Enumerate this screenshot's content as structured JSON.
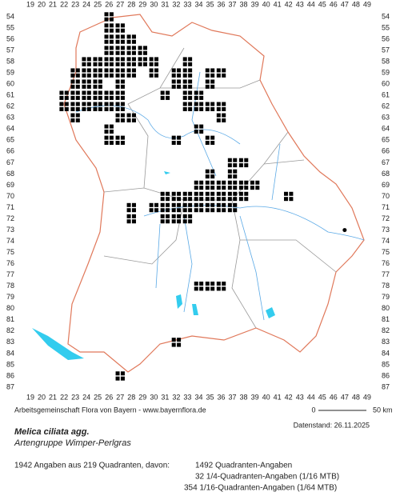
{
  "map": {
    "col_labels": [
      19,
      20,
      21,
      22,
      23,
      24,
      25,
      26,
      27,
      28,
      29,
      30,
      31,
      32,
      33,
      34,
      35,
      36,
      37,
      38,
      39,
      40,
      41,
      42,
      43,
      44,
      45,
      46,
      47,
      48,
      49
    ],
    "row_labels": [
      54,
      55,
      56,
      57,
      58,
      59,
      60,
      61,
      62,
      63,
      64,
      65,
      66,
      67,
      68,
      69,
      70,
      71,
      72,
      73,
      74,
      75,
      76,
      77,
      78,
      79,
      80,
      81,
      82,
      83,
      84,
      85,
      86,
      87
    ]
  },
  "footer": {
    "credit": "Arbeitsgemeinschaft Flora von Bayern - www.bayernflora.de",
    "scale_start": "0",
    "scale_end": "50 km",
    "date": "Datenstand: 26.11.2025",
    "species": "Melica ciliata agg.",
    "common_name": "Artengruppe Wimper-Perlgras",
    "summary": "1942 Angaben aus 219 Quadranten, davon:",
    "counts": [
      "1492 Quadranten-Angaben",
      "32 1/4-Quadranten-Angaben (1/16 MTB)",
      "354 1/16-Quadranten-Angaben (1/64 MTB)"
    ]
  }
}
